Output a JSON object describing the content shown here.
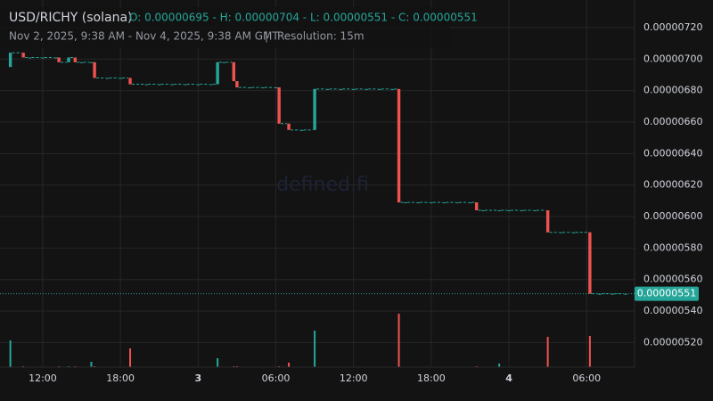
{
  "chart_data": {
    "type": "candlestick",
    "title": "USD/RICHY (solana)",
    "ohlc_label": "O: 0.00000695 - H: 0.00000704 - L: 0.00000551 - C: 0.00000551",
    "subtitle": "Nov 2, 2025, 9:38 AM - Nov 4, 2025, 9:38 AM GMT",
    "resolution": "Resolution: 15m",
    "watermark": "defined.fi",
    "up_color": "#26a69a",
    "down_color": "#ef5350",
    "grid": true,
    "xlim": [
      8.7,
      57.7
    ],
    "xticks": [
      {
        "value": 12,
        "label": "12:00"
      },
      {
        "value": 18,
        "label": "18:00"
      },
      {
        "value": 24,
        "label": "3"
      },
      {
        "value": 30,
        "label": "06:00"
      },
      {
        "value": 36,
        "label": "12:00"
      },
      {
        "value": 42,
        "label": "18:00"
      },
      {
        "value": 48,
        "label": "4"
      },
      {
        "value": 54,
        "label": "06:00"
      }
    ],
    "ylim": [
      5.044e-06,
      7.375e-06
    ],
    "yticks": [
      {
        "value": 5.2e-06,
        "label": "0.00000520"
      },
      {
        "value": 5.4e-06,
        "label": "0.00000540"
      },
      {
        "value": 5.6e-06,
        "label": "0.00000560"
      },
      {
        "value": 5.8e-06,
        "label": "0.00000580"
      },
      {
        "value": 6e-06,
        "label": "0.00000600"
      },
      {
        "value": 6.2e-06,
        "label": "0.00000620"
      },
      {
        "value": 6.4e-06,
        "label": "0.00000640"
      },
      {
        "value": 6.6e-06,
        "label": "0.00000660"
      },
      {
        "value": 6.8e-06,
        "label": "0.00000680"
      },
      {
        "value": 7e-06,
        "label": "0.00000700"
      },
      {
        "value": 7.2e-06,
        "label": "0.00000720"
      }
    ],
    "last_price": {
      "value": 5.51e-06,
      "label": "0.00000551"
    },
    "x": [
      9.5,
      10.5,
      11,
      12,
      13,
      13.25,
      14,
      14.5,
      15,
      15.75,
      16,
      17,
      18,
      18.75,
      20,
      21,
      22,
      23,
      24,
      25,
      25.5,
      26,
      26.75,
      27,
      28,
      29,
      30,
      30.25,
      31,
      32,
      33,
      34,
      35,
      36,
      37,
      38,
      39,
      39.5,
      40,
      41,
      42,
      43,
      44,
      45,
      45.5,
      46,
      47.25,
      48,
      49,
      50,
      51,
      52,
      53,
      54.25,
      55,
      56,
      57
    ],
    "open": [
      6.95e-06,
      7.04e-06,
      7.01e-06,
      7.01e-06,
      7.01e-06,
      7.01e-06,
      6.98e-06,
      7.01e-06,
      6.98e-06,
      6.98e-06,
      6.98e-06,
      6.88e-06,
      6.88e-06,
      6.88e-06,
      6.84e-06,
      6.84e-06,
      6.84e-06,
      6.84e-06,
      6.84e-06,
      6.84e-06,
      6.84e-06,
      6.98e-06,
      6.98e-06,
      6.86e-06,
      6.82e-06,
      6.82e-06,
      6.82e-06,
      6.82e-06,
      6.59e-06,
      6.55e-06,
      6.55e-06,
      6.81e-06,
      6.81e-06,
      6.81e-06,
      6.81e-06,
      6.81e-06,
      6.81e-06,
      6.81e-06,
      6.09e-06,
      6.09e-06,
      6.09e-06,
      6.09e-06,
      6.09e-06,
      6.09e-06,
      6.09e-06,
      6.04e-06,
      6.04e-06,
      6.04e-06,
      6.04e-06,
      6.04e-06,
      6.04e-06,
      5.9e-06,
      5.9e-06,
      5.9e-06,
      5.51e-06,
      5.51e-06,
      5.51e-06
    ],
    "high": [
      7.04e-06,
      7.04e-06,
      7.01e-06,
      7.01e-06,
      7.01e-06,
      7.01e-06,
      7.01e-06,
      7.01e-06,
      6.98e-06,
      6.98e-06,
      6.98e-06,
      6.88e-06,
      6.88e-06,
      6.88e-06,
      6.84e-06,
      6.84e-06,
      6.84e-06,
      6.84e-06,
      6.84e-06,
      6.84e-06,
      6.98e-06,
      6.98e-06,
      6.98e-06,
      6.86e-06,
      6.82e-06,
      6.82e-06,
      6.82e-06,
      6.82e-06,
      6.59e-06,
      6.55e-06,
      6.81e-06,
      6.81e-06,
      6.81e-06,
      6.81e-06,
      6.81e-06,
      6.81e-06,
      6.81e-06,
      6.81e-06,
      6.09e-06,
      6.09e-06,
      6.09e-06,
      6.09e-06,
      6.09e-06,
      6.09e-06,
      6.09e-06,
      6.04e-06,
      6.04e-06,
      6.04e-06,
      6.04e-06,
      6.04e-06,
      6.04e-06,
      5.9e-06,
      5.9e-06,
      5.9e-06,
      5.51e-06,
      5.51e-06,
      5.51e-06
    ],
    "low": [
      6.95e-06,
      7.01e-06,
      7.01e-06,
      7.01e-06,
      7.01e-06,
      6.98e-06,
      6.98e-06,
      6.98e-06,
      6.98e-06,
      6.98e-06,
      6.88e-06,
      6.88e-06,
      6.88e-06,
      6.84e-06,
      6.84e-06,
      6.84e-06,
      6.84e-06,
      6.84e-06,
      6.84e-06,
      6.84e-06,
      6.84e-06,
      6.98e-06,
      6.86e-06,
      6.82e-06,
      6.82e-06,
      6.82e-06,
      6.82e-06,
      6.59e-06,
      6.55e-06,
      6.55e-06,
      6.55e-06,
      6.81e-06,
      6.81e-06,
      6.81e-06,
      6.81e-06,
      6.81e-06,
      6.81e-06,
      6.09e-06,
      6.09e-06,
      6.09e-06,
      6.09e-06,
      6.09e-06,
      6.09e-06,
      6.09e-06,
      6.04e-06,
      6.04e-06,
      6.04e-06,
      6.04e-06,
      6.04e-06,
      6.04e-06,
      5.9e-06,
      5.9e-06,
      5.9e-06,
      5.51e-06,
      5.51e-06,
      5.51e-06,
      5.51e-06
    ],
    "close": [
      7.04e-06,
      7.01e-06,
      7.01e-06,
      7.01e-06,
      7.01e-06,
      6.98e-06,
      7.01e-06,
      6.98e-06,
      6.98e-06,
      6.98e-06,
      6.88e-06,
      6.88e-06,
      6.88e-06,
      6.84e-06,
      6.84e-06,
      6.84e-06,
      6.84e-06,
      6.84e-06,
      6.84e-06,
      6.84e-06,
      6.98e-06,
      6.98e-06,
      6.86e-06,
      6.82e-06,
      6.82e-06,
      6.82e-06,
      6.82e-06,
      6.59e-06,
      6.55e-06,
      6.55e-06,
      6.81e-06,
      6.81e-06,
      6.81e-06,
      6.81e-06,
      6.81e-06,
      6.81e-06,
      6.81e-06,
      6.09e-06,
      6.09e-06,
      6.09e-06,
      6.09e-06,
      6.09e-06,
      6.09e-06,
      6.09e-06,
      6.04e-06,
      6.04e-06,
      6.04e-06,
      6.04e-06,
      6.04e-06,
      6.04e-06,
      5.9e-06,
      5.9e-06,
      5.9e-06,
      5.51e-06,
      5.51e-06,
      5.51e-06,
      5.51e-06
    ],
    "volume": [
      30,
      1,
      0,
      0,
      0,
      1,
      1,
      1,
      0,
      6,
      1,
      0,
      0,
      21,
      0,
      0,
      0,
      0,
      0,
      0,
      10,
      0,
      1,
      1,
      0,
      0,
      0,
      1,
      5,
      0,
      41,
      0,
      0,
      0,
      0,
      0,
      0,
      60,
      0,
      0,
      0,
      0,
      0,
      0,
      1,
      0,
      4,
      0,
      0,
      0,
      34,
      0,
      0,
      35,
      0,
      0,
      0
    ]
  }
}
